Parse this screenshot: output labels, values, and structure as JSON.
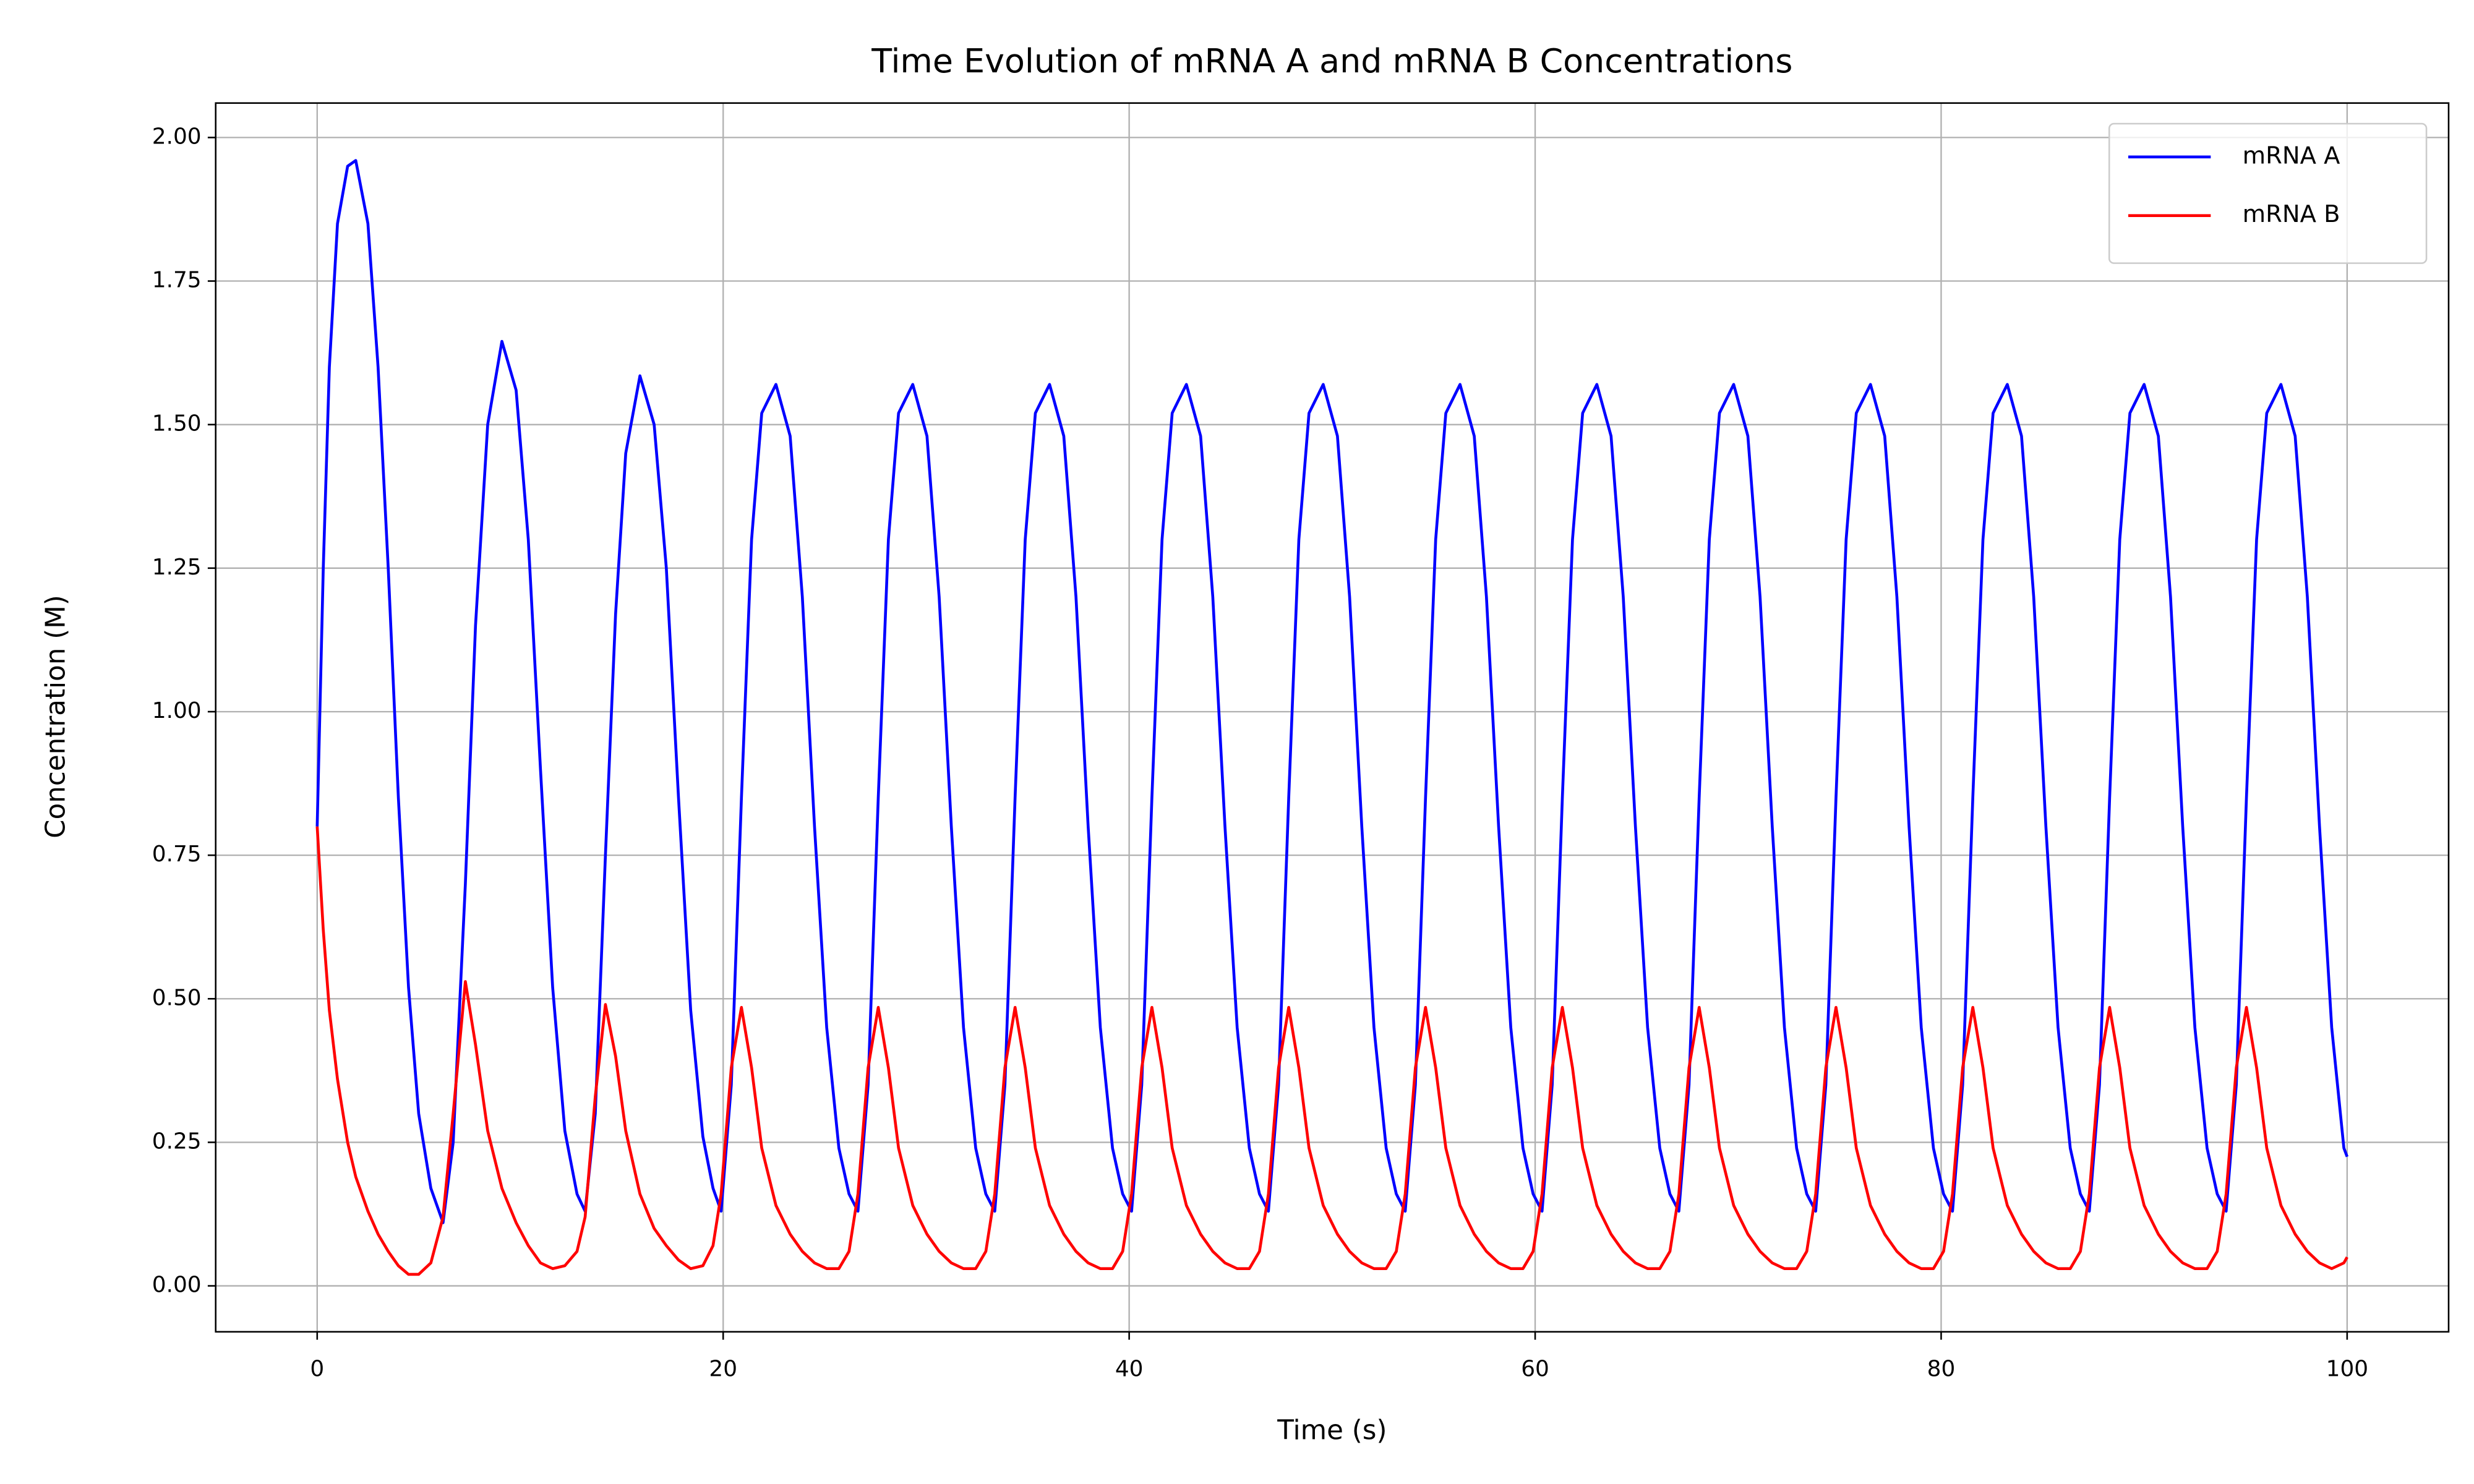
{
  "chart_data": {
    "type": "line",
    "title": "Time Evolution of mRNA A and mRNA B Concentrations",
    "x_label": "Time (s)",
    "y_label": "Concentration (M)",
    "x": [
      0,
      0.3,
      0.6,
      1.0,
      1.5,
      1.9,
      2.5,
      3.0,
      3.5,
      4.0,
      4.5,
      5.0,
      5.6,
      6.2,
      6.7,
      7.3,
      7.8,
      8.4,
      9.1,
      9.8,
      10.4,
      11.0,
      11.6,
      12.2,
      12.8,
      13.2,
      13.7,
      14.2,
      14.7,
      15.2,
      15.9,
      16.6,
      17.2,
      17.8,
      18.4,
      19.0,
      19.5,
      19.9,
      20.4,
      20.9,
      21.4,
      21.9,
      22.6,
      23.3,
      23.9,
      24.5,
      25.1,
      25.7,
      26.2,
      26.64,
      27.14,
      27.64,
      28.14,
      28.64,
      29.34,
      30.04,
      30.64,
      31.24,
      31.84,
      32.44,
      32.94,
      33.38,
      33.88,
      34.38,
      34.88,
      35.38,
      36.08,
      36.78,
      37.38,
      37.98,
      38.58,
      39.18,
      39.68,
      40.12,
      40.62,
      41.12,
      41.62,
      42.12,
      42.82,
      43.52,
      44.12,
      44.72,
      45.32,
      45.92,
      46.42,
      46.86,
      47.36,
      47.86,
      48.36,
      48.86,
      49.56,
      50.26,
      50.86,
      51.46,
      52.06,
      52.66,
      53.16,
      53.6,
      54.1,
      54.6,
      55.1,
      55.6,
      56.3,
      57.0,
      57.6,
      58.2,
      58.8,
      59.4,
      59.9,
      60.34,
      60.84,
      61.34,
      61.84,
      62.34,
      63.04,
      63.74,
      64.34,
      64.94,
      65.54,
      66.14,
      66.64,
      67.08,
      67.58,
      68.08,
      68.58,
      69.08,
      69.78,
      70.48,
      71.08,
      71.68,
      72.28,
      72.88,
      73.38,
      73.82,
      74.32,
      74.82,
      75.32,
      75.82,
      76.52,
      77.22,
      77.82,
      78.42,
      79.02,
      79.62,
      80.12,
      80.56,
      81.06,
      81.56,
      82.06,
      82.56,
      83.26,
      83.96,
      84.56,
      85.16,
      85.76,
      86.36,
      86.86,
      87.3,
      87.8,
      88.3,
      88.8,
      89.3,
      90.0,
      90.7,
      91.3,
      91.9,
      92.5,
      93.1,
      93.6,
      94.04,
      94.54,
      95.04,
      95.54,
      96.04,
      96.74,
      97.44,
      98.04,
      98.64,
      99.24,
      99.84,
      100
    ],
    "series": [
      {
        "name": "mRNA A",
        "color": "#0000ff",
        "values": [
          0.8,
          1.25,
          1.6,
          1.85,
          1.95,
          1.96,
          1.85,
          1.6,
          1.25,
          0.85,
          0.52,
          0.3,
          0.17,
          0.11,
          0.25,
          0.7,
          1.15,
          1.5,
          1.645,
          1.56,
          1.3,
          0.9,
          0.52,
          0.27,
          0.16,
          0.13,
          0.3,
          0.75,
          1.17,
          1.45,
          1.585,
          1.5,
          1.25,
          0.85,
          0.48,
          0.26,
          0.17,
          0.13,
          0.35,
          0.85,
          1.3,
          1.52,
          1.57,
          1.48,
          1.2,
          0.8,
          0.45,
          0.24,
          0.16,
          0.13,
          0.35,
          0.85,
          1.3,
          1.52,
          1.57,
          1.48,
          1.2,
          0.8,
          0.45,
          0.24,
          0.16,
          0.13,
          0.35,
          0.85,
          1.3,
          1.52,
          1.57,
          1.48,
          1.2,
          0.8,
          0.45,
          0.24,
          0.16,
          0.13,
          0.35,
          0.85,
          1.3,
          1.52,
          1.57,
          1.48,
          1.2,
          0.8,
          0.45,
          0.24,
          0.16,
          0.13,
          0.35,
          0.85,
          1.3,
          1.52,
          1.57,
          1.48,
          1.2,
          0.8,
          0.45,
          0.24,
          0.16,
          0.13,
          0.35,
          0.85,
          1.3,
          1.52,
          1.57,
          1.48,
          1.2,
          0.8,
          0.45,
          0.24,
          0.16,
          0.13,
          0.35,
          0.85,
          1.3,
          1.52,
          1.57,
          1.48,
          1.2,
          0.8,
          0.45,
          0.24,
          0.16,
          0.13,
          0.35,
          0.85,
          1.3,
          1.52,
          1.57,
          1.48,
          1.2,
          0.8,
          0.45,
          0.24,
          0.16,
          0.13,
          0.35,
          0.85,
          1.3,
          1.52,
          1.57,
          1.48,
          1.2,
          0.8,
          0.45,
          0.24,
          0.16,
          0.13,
          0.35,
          0.85,
          1.3,
          1.52,
          1.57,
          1.48,
          1.2,
          0.8,
          0.45,
          0.24,
          0.16,
          0.13,
          0.35,
          0.85,
          1.3,
          1.52,
          1.57,
          1.48,
          1.2,
          0.8,
          0.45,
          0.24,
          0.16,
          0.13,
          0.35,
          0.85,
          1.3,
          1.52,
          1.57,
          1.48,
          1.2,
          0.8,
          0.45,
          0.24,
          0.225
        ]
      },
      {
        "name": "mRNA B",
        "color": "#ff0000",
        "values": [
          0.8,
          0.62,
          0.48,
          0.36,
          0.25,
          0.19,
          0.13,
          0.09,
          0.06,
          0.035,
          0.02,
          0.02,
          0.04,
          0.12,
          0.3,
          0.53,
          0.42,
          0.27,
          0.17,
          0.11,
          0.07,
          0.04,
          0.03,
          0.035,
          0.06,
          0.12,
          0.33,
          0.49,
          0.4,
          0.27,
          0.16,
          0.1,
          0.07,
          0.045,
          0.03,
          0.035,
          0.07,
          0.16,
          0.38,
          0.485,
          0.38,
          0.24,
          0.14,
          0.09,
          0.06,
          0.04,
          0.03,
          0.03,
          0.06,
          0.16,
          0.38,
          0.485,
          0.38,
          0.24,
          0.14,
          0.09,
          0.06,
          0.04,
          0.03,
          0.03,
          0.06,
          0.16,
          0.38,
          0.485,
          0.38,
          0.24,
          0.14,
          0.09,
          0.06,
          0.04,
          0.03,
          0.03,
          0.06,
          0.16,
          0.38,
          0.485,
          0.38,
          0.24,
          0.14,
          0.09,
          0.06,
          0.04,
          0.03,
          0.03,
          0.06,
          0.16,
          0.38,
          0.485,
          0.38,
          0.24,
          0.14,
          0.09,
          0.06,
          0.04,
          0.03,
          0.03,
          0.06,
          0.16,
          0.38,
          0.485,
          0.38,
          0.24,
          0.14,
          0.09,
          0.06,
          0.04,
          0.03,
          0.03,
          0.06,
          0.16,
          0.38,
          0.485,
          0.38,
          0.24,
          0.14,
          0.09,
          0.06,
          0.04,
          0.03,
          0.03,
          0.06,
          0.16,
          0.38,
          0.485,
          0.38,
          0.24,
          0.14,
          0.09,
          0.06,
          0.04,
          0.03,
          0.03,
          0.06,
          0.16,
          0.38,
          0.485,
          0.38,
          0.24,
          0.14,
          0.09,
          0.06,
          0.04,
          0.03,
          0.03,
          0.06,
          0.16,
          0.38,
          0.485,
          0.38,
          0.24,
          0.14,
          0.09,
          0.06,
          0.04,
          0.03,
          0.03,
          0.06,
          0.16,
          0.38,
          0.485,
          0.38,
          0.24,
          0.14,
          0.09,
          0.06,
          0.04,
          0.03,
          0.03,
          0.06,
          0.16,
          0.38,
          0.485,
          0.38,
          0.24,
          0.14,
          0.09,
          0.06,
          0.04,
          0.03,
          0.04,
          0.05
        ]
      }
    ],
    "xlim": [
      -5,
      105
    ],
    "xticks": [
      0,
      20,
      40,
      60,
      80,
      100
    ],
    "ylim": [
      -0.08,
      2.06
    ],
    "yticks": [
      {
        "value": 0,
        "label": "0.00"
      },
      {
        "value": 0.25,
        "label": "0.25"
      },
      {
        "value": 0.5,
        "label": "0.50"
      },
      {
        "value": 0.75,
        "label": "0.75"
      },
      {
        "value": 1,
        "label": "1.00"
      },
      {
        "value": 1.25,
        "label": "1.25"
      },
      {
        "value": 1.5,
        "label": "1.50"
      },
      {
        "value": 1.75,
        "label": "1.75"
      },
      {
        "value": 2,
        "label": "2.00"
      }
    ],
    "grid": true,
    "legend": "upper right"
  }
}
